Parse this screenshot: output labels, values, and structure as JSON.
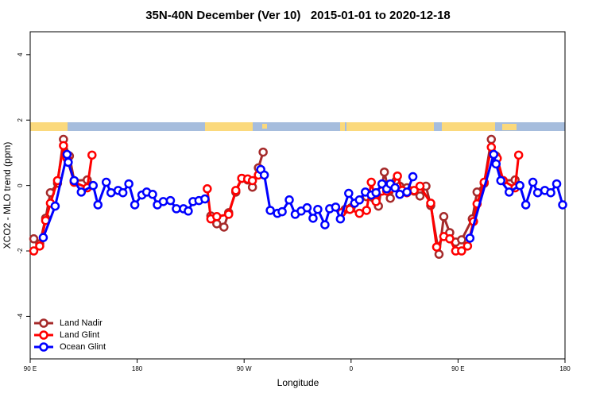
{
  "chart_data": {
    "type": "line",
    "title": "35N-40N December (Ver 10)   2015-01-01 to 2020-12-18",
    "xlabel": "Longitude",
    "ylabel": "XCO2 - MLO trend (ppm)",
    "xlim": [
      90,
      540
    ],
    "ylim": [
      -5.3,
      4.7
    ],
    "xticks": [
      {
        "value": 90,
        "label": "90 E"
      },
      180,
      {
        "value": 270,
        "label": "90 W"
      },
      {
        "value": 360,
        "label": "0"
      },
      {
        "value": 450,
        "label": "90 E"
      },
      {
        "value": 540,
        "label": "180"
      }
    ],
    "yticks": [
      -4,
      -2,
      0,
      2,
      4
    ],
    "legend": "bottom-left",
    "series": [
      {
        "name": "Land Nadir",
        "color": "#a52a2a",
        "x": [
          93,
          98,
          103,
          107,
          113,
          118,
          123,
          127,
          138,
          null,
          242,
          247,
          253,
          257,
          263,
          268,
          273,
          277,
          282,
          286,
          null,
          355,
          360,
          373,
          383,
          388,
          393,
          398,
          401,
          407,
          413,
          418,
          423,
          427,
          434,
          438,
          443,
          448,
          453,
          462,
          466,
          472,
          478,
          482,
          488,
          498
        ],
        "values": [
          -1.63,
          -1.78,
          -1.0,
          -0.22,
          0.07,
          1.41,
          0.9,
          0.15,
          0.17,
          null,
          -0.93,
          -1.17,
          -1.27,
          -0.83,
          -0.2,
          0.22,
          0.17,
          -0.05,
          0.54,
          1.02,
          null,
          -0.73,
          -0.68,
          -0.34,
          -0.63,
          0.41,
          -0.39,
          0.15,
          -0.02,
          -0.07,
          -0.17,
          -0.32,
          -0.02,
          -0.61,
          -2.1,
          -0.95,
          -1.44,
          -1.73,
          -1.66,
          -1.02,
          -0.2,
          0.07,
          1.41,
          0.9,
          0.15,
          0.17
        ]
      },
      {
        "name": "Land Glint",
        "color": "#ff0000",
        "x": [
          93,
          98,
          103,
          107,
          113,
          118,
          121,
          127,
          138,
          142,
          null,
          239,
          242,
          247,
          257,
          263,
          268,
          273,
          277,
          282,
          null,
          352,
          359,
          367,
          373,
          377,
          381,
          386,
          390,
          393,
          399,
          403,
          407,
          413,
          418,
          427,
          432,
          438,
          443,
          448,
          453,
          458,
          463,
          466,
          472,
          478,
          483,
          488,
          498,
          501
        ],
        "values": [
          -2.0,
          -1.85,
          -1.07,
          -0.54,
          0.15,
          1.22,
          0.83,
          0.1,
          -0.07,
          0.93,
          null,
          -0.1,
          -1.02,
          -0.95,
          -0.88,
          -0.15,
          0.22,
          0.2,
          0.15,
          0.32,
          null,
          -0.83,
          -0.73,
          -0.85,
          -0.76,
          0.1,
          -0.49,
          -0.17,
          -0.17,
          -0.1,
          0.29,
          -0.15,
          -0.22,
          -0.15,
          -0.02,
          -0.54,
          -1.88,
          -1.56,
          -1.63,
          -2.0,
          -2.0,
          -1.85,
          -1.1,
          -0.56,
          0.1,
          1.17,
          0.83,
          0.15,
          -0.07,
          0.93
        ]
      },
      {
        "name": "Ocean Glint",
        "color": "#0000ff",
        "x": [
          101,
          111,
          121,
          122,
          127,
          133,
          143,
          147,
          154,
          158,
          164,
          168,
          173,
          178,
          184,
          188,
          193,
          197,
          202,
          208,
          213,
          219,
          223,
          227,
          232,
          237,
          null,
          284,
          287,
          292,
          298,
          302,
          308,
          313,
          318,
          323,
          328,
          332,
          338,
          342,
          347,
          351,
          358,
          363,
          367,
          372,
          377,
          381,
          386,
          390,
          393,
          397,
          401,
          407,
          412,
          null,
          460,
          480,
          482,
          486,
          493,
          502,
          507,
          513,
          517,
          523,
          528,
          533,
          538
        ],
        "values": [
          -1.59,
          -0.63,
          0.95,
          0.71,
          0.15,
          -0.2,
          0.0,
          -0.59,
          0.1,
          -0.22,
          -0.15,
          -0.22,
          0.05,
          -0.59,
          -0.29,
          -0.2,
          -0.27,
          -0.59,
          -0.49,
          -0.46,
          -0.71,
          -0.71,
          -0.78,
          -0.49,
          -0.46,
          -0.41,
          null,
          0.49,
          0.32,
          -0.76,
          -0.85,
          -0.8,
          -0.44,
          -0.88,
          -0.78,
          -0.68,
          -1.0,
          -0.73,
          -1.2,
          -0.71,
          -0.66,
          -1.02,
          -0.24,
          -0.54,
          -0.44,
          -0.2,
          -0.29,
          -0.22,
          0.05,
          -0.1,
          0.05,
          -0.07,
          -0.27,
          -0.2,
          0.27,
          null,
          -1.61,
          0.95,
          0.66,
          0.15,
          -0.2,
          0.0,
          -0.59,
          0.1,
          -0.22,
          -0.15,
          -0.22,
          0.05,
          -0.59
        ]
      }
    ]
  }
}
